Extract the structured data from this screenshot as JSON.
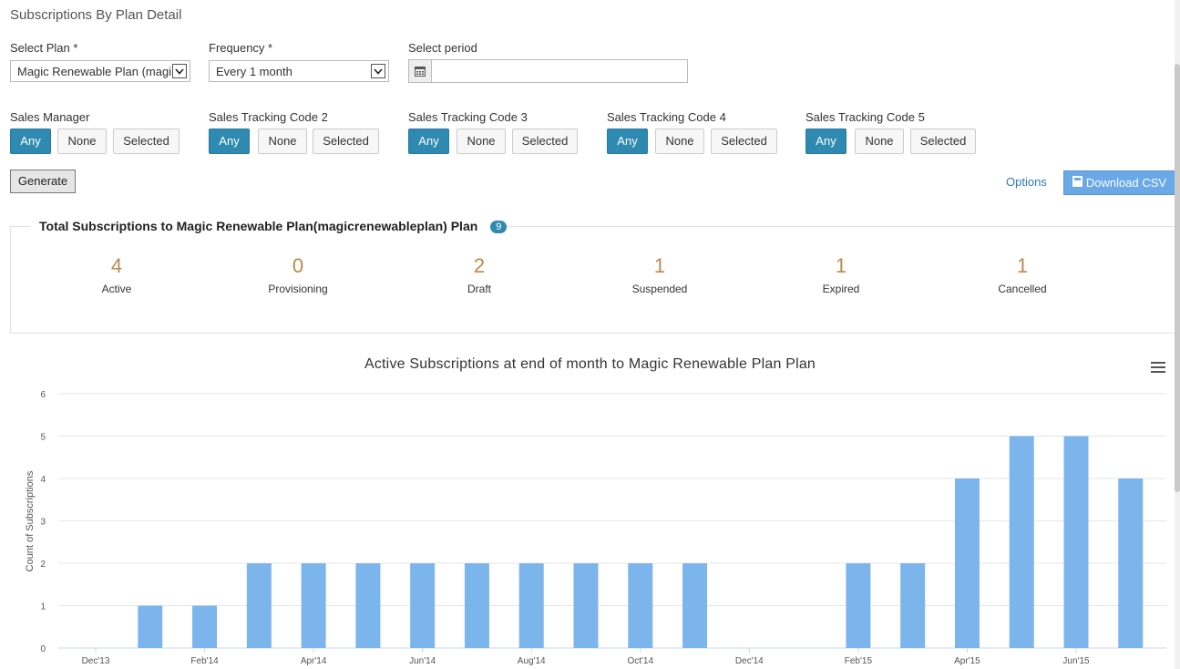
{
  "page_title": "Subscriptions By Plan Detail",
  "filters": {
    "plan_label": "Select Plan *",
    "plan_value": "Magic Renewable Plan (magi",
    "frequency_label": "Frequency *",
    "frequency_value": "Every 1 month",
    "period_label": "Select period",
    "period_value": ""
  },
  "groups": [
    {
      "label": "Sales Manager",
      "any": "Any",
      "none": "None",
      "selected": "Selected",
      "active": "any"
    },
    {
      "label": "Sales Tracking Code 2",
      "any": "Any",
      "none": "None",
      "selected": "Selected",
      "active": "any"
    },
    {
      "label": "Sales Tracking Code 3",
      "any": "Any",
      "none": "None",
      "selected": "Selected",
      "active": "any"
    },
    {
      "label": "Sales Tracking Code 4",
      "any": "Any",
      "none": "None",
      "selected": "Selected",
      "active": "any"
    },
    {
      "label": "Sales Tracking Code 5",
      "any": "Any",
      "none": "None",
      "selected": "Selected",
      "active": "any"
    }
  ],
  "actions": {
    "generate": "Generate",
    "options": "Options",
    "download_csv": "Download CSV"
  },
  "summary": {
    "title": "Total Subscriptions to Magic Renewable Plan(magicrenewableplan) Plan",
    "total_badge": "9",
    "stats": [
      {
        "value": "4",
        "label": "Active"
      },
      {
        "value": "0",
        "label": "Provisioning"
      },
      {
        "value": "2",
        "label": "Draft"
      },
      {
        "value": "1",
        "label": "Suspended"
      },
      {
        "value": "1",
        "label": "Expired"
      },
      {
        "value": "1",
        "label": "Cancelled"
      }
    ]
  },
  "colors": {
    "accent": "#2e8ab0",
    "bar": "#7cb5ec",
    "stat_value": "#b88a4e",
    "download_button": "#6aa8e8"
  },
  "icons": {
    "calendar": "calendar-icon",
    "chart_menu": "hamburger-menu-icon",
    "download": "download-icon"
  },
  "chart_data": {
    "type": "bar",
    "title": "Active Subscriptions at end of month to Magic Renewable Plan Plan",
    "ylabel": "Count of Subscriptions",
    "xlabel": "",
    "ylim": [
      0,
      6
    ],
    "yticks": [
      0,
      1,
      2,
      3,
      4,
      5,
      6
    ],
    "grid": true,
    "x_labels": [
      "Dec'13",
      "Feb'14",
      "Apr'14",
      "Jun'14",
      "Aug'14",
      "Oct'14",
      "Dec'14",
      "Feb'15",
      "Apr'15",
      "Jun'15"
    ],
    "categories": [
      "Dec'13",
      "Jan'14",
      "Feb'14",
      "Mar'14",
      "Apr'14",
      "May'14",
      "Jun'14",
      "Jul'14",
      "Aug'14",
      "Sep'14",
      "Oct'14",
      "Nov'14",
      "Dec'14",
      "Jan'15",
      "Feb'15",
      "Mar'15",
      "Apr'15",
      "May'15",
      "Jun'15",
      "Jul'15"
    ],
    "values": [
      0,
      1,
      1,
      2,
      2,
      2,
      2,
      2,
      2,
      2,
      2,
      2,
      0,
      0,
      2,
      2,
      4,
      5,
      5,
      4
    ]
  }
}
